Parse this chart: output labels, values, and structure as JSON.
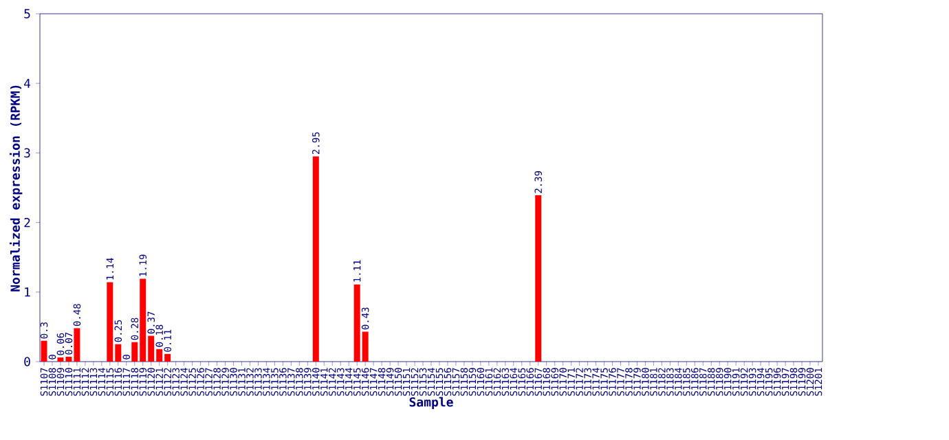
{
  "chart_data": {
    "type": "bar",
    "xlabel": "Sample",
    "ylabel": "Normalized expression (RPKM)",
    "categories": [
      "S1107",
      "S1108",
      "S1109",
      "S1110",
      "S1111",
      "S1112",
      "S1113",
      "S1114",
      "S1115",
      "S1116",
      "S1117",
      "S1118",
      "S1119",
      "S1120",
      "S1121",
      "S1122",
      "S1123",
      "S1124",
      "S1125",
      "S1126",
      "S1127",
      "S1128",
      "S1129",
      "S1130",
      "S1131",
      "S1132",
      "S1133",
      "S1134",
      "S1135",
      "S1136",
      "S1137",
      "S1138",
      "S1139",
      "S1140",
      "S1141",
      "S1142",
      "S1143",
      "S1144",
      "S1145",
      "S1146",
      "S1147",
      "S1148",
      "S1149",
      "S1150",
      "S1151",
      "S1152",
      "S1153",
      "S1154",
      "S1155",
      "S1156",
      "S1157",
      "S1158",
      "S1159",
      "S1160",
      "S1161",
      "S1162",
      "S1163",
      "S1164",
      "S1165",
      "S1166",
      "S1167",
      "S1168",
      "S1169",
      "S1170",
      "S1171",
      "S1172",
      "S1173",
      "S1174",
      "S1175",
      "S1176",
      "S1177",
      "S1178",
      "S1179",
      "S1180",
      "S1181",
      "S1182",
      "S1183",
      "S1184",
      "S1185",
      "S1186",
      "S1187",
      "S1188",
      "S1189",
      "S1190",
      "S1191",
      "S1192",
      "S1193",
      "S1194",
      "S1195",
      "S1196",
      "S1197",
      "S1198",
      "S1199",
      "S1200",
      "S1201"
    ],
    "values": [
      0.3,
      0,
      0.06,
      0.07,
      0.48,
      null,
      null,
      null,
      1.14,
      0.25,
      0,
      0.28,
      1.19,
      0.37,
      0.18,
      0.11,
      null,
      null,
      null,
      null,
      null,
      null,
      null,
      null,
      null,
      null,
      null,
      null,
      null,
      null,
      null,
      null,
      null,
      2.95,
      null,
      null,
      null,
      null,
      1.11,
      0.43,
      null,
      null,
      null,
      null,
      null,
      null,
      null,
      null,
      null,
      null,
      null,
      null,
      null,
      null,
      null,
      null,
      null,
      null,
      null,
      null,
      2.39,
      null,
      null,
      null,
      null,
      null,
      null,
      null,
      null,
      null,
      null,
      null,
      null,
      null,
      null,
      null,
      null,
      null,
      null,
      null,
      null,
      null,
      null,
      null,
      null,
      null,
      null,
      null,
      null,
      null,
      null,
      null,
      null,
      null,
      null
    ],
    "value_labels": [
      "0.3",
      "0",
      "0.06",
      "0.07",
      "0.48",
      null,
      null,
      null,
      "1.14",
      "0.25",
      "0",
      "0.28",
      "1.19",
      "0.37",
      "0.18",
      "0.11",
      null,
      null,
      null,
      null,
      null,
      null,
      null,
      null,
      null,
      null,
      null,
      null,
      null,
      null,
      null,
      null,
      null,
      "2.95",
      null,
      null,
      null,
      null,
      "1.11",
      "0.43",
      null,
      null,
      null,
      null,
      null,
      null,
      null,
      null,
      null,
      null,
      null,
      null,
      null,
      null,
      null,
      null,
      null,
      null,
      null,
      null,
      "2.39",
      null,
      null,
      null,
      null,
      null,
      null,
      null,
      null,
      null,
      null,
      null,
      null,
      null,
      null,
      null,
      null,
      null,
      null,
      null,
      null,
      null,
      null,
      null,
      null,
      null,
      null,
      null,
      null,
      null,
      null,
      null,
      null,
      null,
      null
    ],
    "color": "#ff0000",
    "ylim": [
      0,
      5
    ],
    "yticks": [
      0,
      1,
      2,
      3,
      4,
      5
    ],
    "grid": false
  }
}
